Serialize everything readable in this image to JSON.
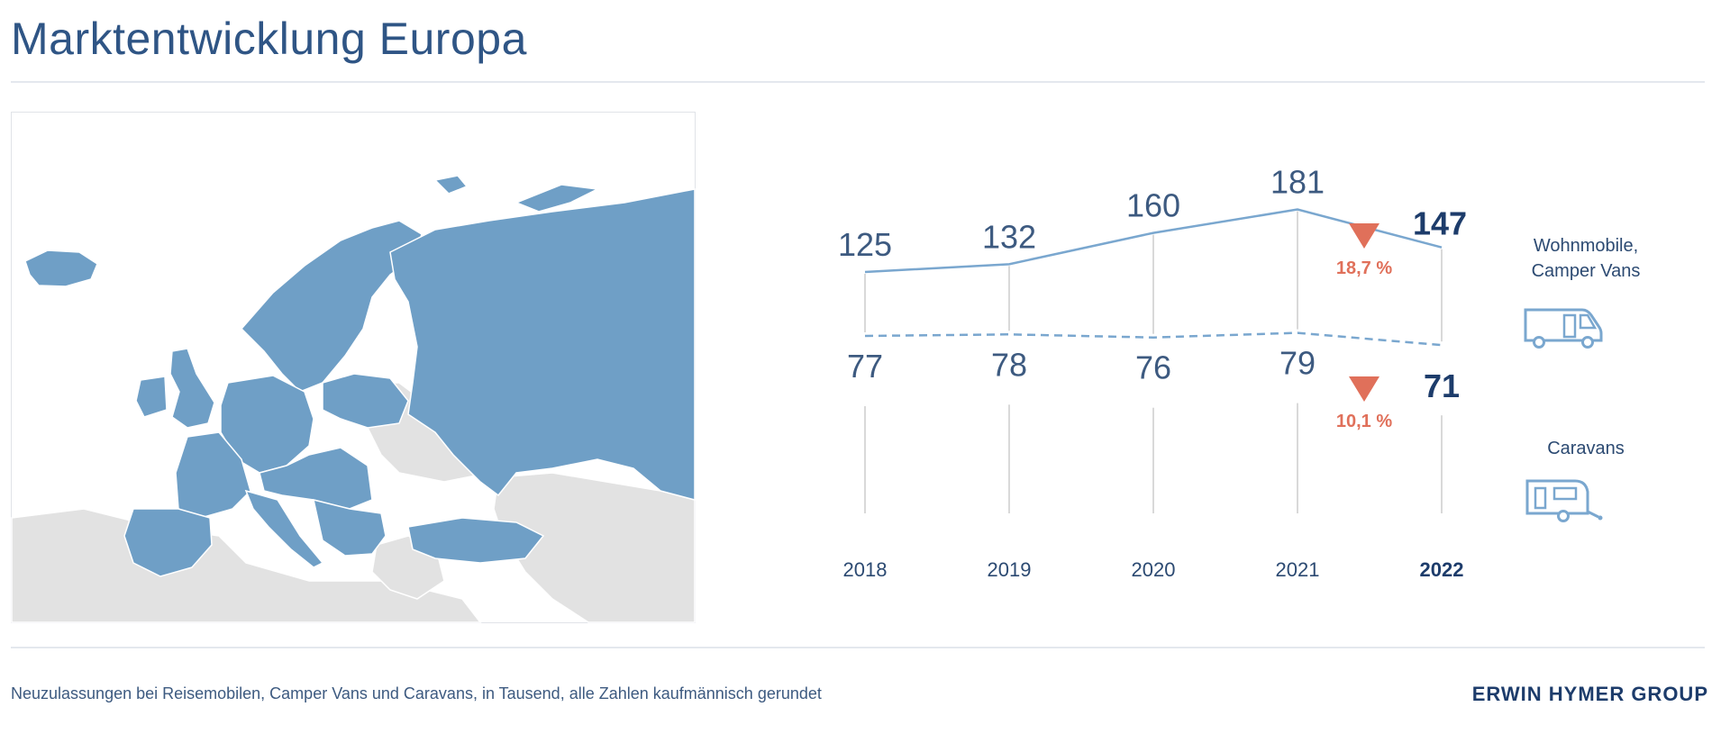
{
  "page": {
    "title": "Marktentwicklung Europa",
    "footnote": "Neuzulassungen bei Reisemobilen, Camper Vans und Caravans, in Tausend, alle Zahlen kaufmännisch gerundet",
    "brand": "ERWIN HYMER GROUP"
  },
  "legend": {
    "wohnmobile_line1": "Wohnmobile,",
    "wohnmobile_line2": "Camper Vans",
    "caravans": "Caravans",
    "wohnmobile_icon": "motorhome-icon",
    "caravans_icon": "caravan-icon"
  },
  "colors": {
    "map_highlight": "#6f9fc6",
    "map_base": "#e2e2e2",
    "line": "#7aa7cf",
    "text": "#2c4a72",
    "decline": "#e0705a"
  },
  "chart_data": {
    "type": "line",
    "categories": [
      "2018",
      "2019",
      "2020",
      "2021",
      "2022"
    ],
    "series": [
      {
        "name": "Wohnmobile, Camper Vans",
        "values": [
          125,
          132,
          160,
          181,
          147
        ],
        "style": "solid"
      },
      {
        "name": "Caravans",
        "values": [
          77,
          78,
          76,
          79,
          71
        ],
        "style": "dashed"
      }
    ],
    "highlight_category": "2022",
    "annotations": [
      {
        "series": "Wohnmobile, Camper Vans",
        "type": "decrease",
        "text": "18,7 %"
      },
      {
        "series": "Caravans",
        "type": "decrease",
        "text": "10,1 %"
      }
    ]
  }
}
